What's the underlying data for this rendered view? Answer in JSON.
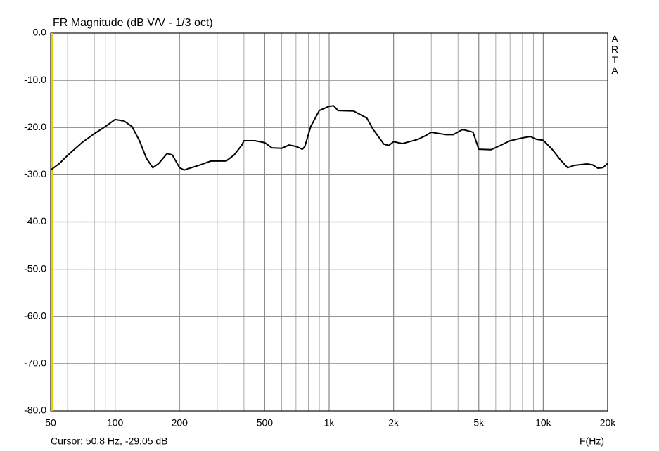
{
  "chart_data": {
    "type": "line",
    "title": "FR Magnitude (dB V/V - 1/3 oct)",
    "x_label": "F(Hz)",
    "watermark": "ARTA",
    "cursor": {
      "x": 50.8,
      "label": "Cursor: 50.8 Hz, -29.05 dB",
      "color": "#e0d000"
    },
    "log_x": true,
    "grid": true,
    "xlim": [
      50,
      20000
    ],
    "ylim": [
      -80,
      0
    ],
    "xticks": [
      50,
      100,
      200,
      500,
      {
        "value": 1000,
        "label": "1k"
      },
      {
        "value": 2000,
        "label": "2k"
      },
      {
        "value": 5000,
        "label": "5k"
      },
      {
        "value": 10000,
        "label": "10k"
      },
      {
        "value": 20000,
        "label": "20k"
      }
    ],
    "xminorticks": [
      60,
      70,
      80,
      90,
      300,
      400,
      600,
      700,
      800,
      900,
      3000,
      4000,
      6000,
      7000,
      8000,
      9000
    ],
    "yticks": [
      {
        "value": 0,
        "label": "0.0"
      },
      {
        "value": -10,
        "label": "-10.0"
      },
      {
        "value": -20,
        "label": "-20.0"
      },
      {
        "value": -30,
        "label": "-30.0"
      },
      {
        "value": -40,
        "label": "-40.0"
      },
      {
        "value": -50,
        "label": "-50.0"
      },
      {
        "value": -60,
        "label": "-60.0"
      },
      {
        "value": -70,
        "label": "-70.0"
      },
      {
        "value": -80,
        "label": "-80.0"
      }
    ],
    "series": [
      {
        "color": "#000000",
        "x": [
          50,
          55,
          60,
          70,
          80,
          90,
          100,
          110,
          120,
          130,
          140,
          150,
          160,
          175,
          185,
          200,
          210,
          250,
          280,
          330,
          360,
          390,
          400,
          450,
          500,
          540,
          600,
          650,
          700,
          750,
          770,
          820,
          900,
          1000,
          1050,
          1100,
          1300,
          1500,
          1600,
          1800,
          1900,
          2000,
          2200,
          2600,
          2800,
          3000,
          3500,
          3800,
          4200,
          4700,
          5000,
          5700,
          6300,
          7000,
          8000,
          8700,
          9300,
          10000,
          11000,
          12000,
          13000,
          14000,
          16000,
          17000,
          18000,
          19000,
          20000
        ],
        "values": [
          -29.0,
          -27.6,
          -25.9,
          -23.2,
          -21.3,
          -19.8,
          -18.3,
          -18.6,
          -19.8,
          -22.8,
          -26.5,
          -28.5,
          -27.6,
          -25.5,
          -25.8,
          -28.5,
          -29.0,
          -27.9,
          -27.1,
          -27.1,
          -25.8,
          -23.8,
          -22.8,
          -22.8,
          -23.2,
          -24.3,
          -24.4,
          -23.7,
          -24.0,
          -24.6,
          -24.0,
          -19.8,
          -16.4,
          -15.5,
          -15.4,
          -16.4,
          -16.5,
          -18.0,
          -20.3,
          -23.5,
          -23.8,
          -23.0,
          -23.4,
          -22.5,
          -21.8,
          -21.0,
          -21.5,
          -21.5,
          -20.4,
          -21.0,
          -24.6,
          -24.7,
          -23.8,
          -22.8,
          -22.2,
          -21.9,
          -22.5,
          -22.7,
          -24.6,
          -26.8,
          -28.5,
          -28.0,
          -27.7,
          -27.9,
          -28.6,
          -28.5,
          -27.6
        ]
      }
    ]
  }
}
